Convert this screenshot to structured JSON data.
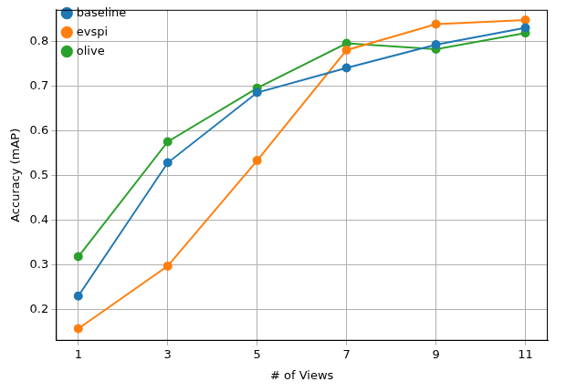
{
  "chart_data": {
    "type": "line",
    "x_label": "# of Views",
    "y_label": "Accuracy (mAP)",
    "x": [
      1,
      3,
      5,
      7,
      9,
      11
    ],
    "series": [
      {
        "name": "baseline",
        "color": "#1f77b4",
        "values": [
          0.23,
          0.528,
          0.685,
          0.74,
          0.792,
          0.83
        ]
      },
      {
        "name": "evspi",
        "color": "#ff7f0e",
        "values": [
          0.157,
          0.297,
          0.533,
          0.78,
          0.838,
          0.847
        ]
      },
      {
        "name": "olive",
        "color": "#2ca02c",
        "values": [
          0.318,
          0.575,
          0.695,
          0.795,
          0.782,
          0.818
        ]
      }
    ],
    "xlim": [
      0.5,
      11.5
    ],
    "xticks": [
      1,
      3,
      5,
      7,
      9,
      11
    ],
    "ylim": [
      0.13,
      0.87
    ],
    "yticks": [
      0.2,
      0.3,
      0.4,
      0.5,
      0.6,
      0.7,
      0.8
    ],
    "grid": true,
    "legend": "top-left",
    "marker": "circle",
    "line_style": "solid"
  }
}
